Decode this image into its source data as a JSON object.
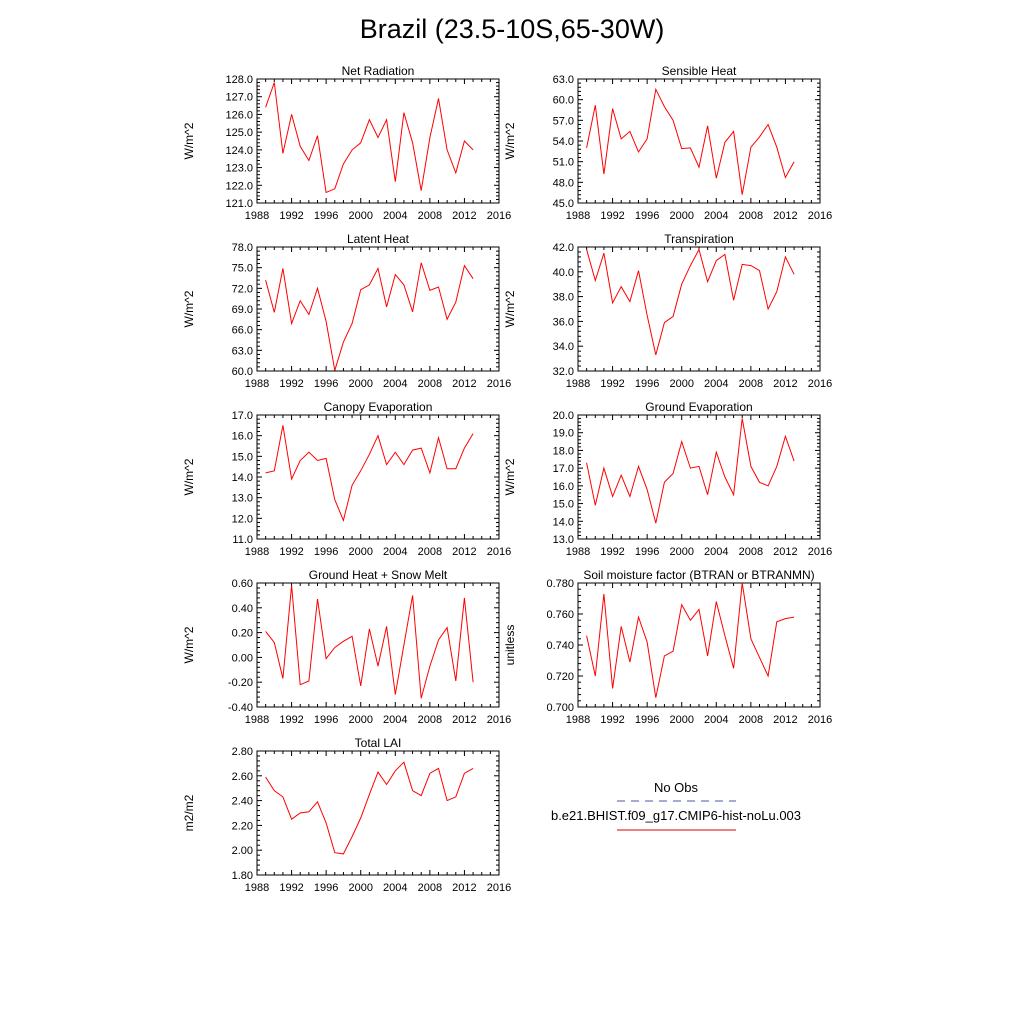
{
  "page": {
    "title": "Brazil (23.5-10S,65-30W)"
  },
  "legend": {
    "items": [
      {
        "label": "No Obs",
        "color": "#4a5aa8",
        "style": "dashed"
      },
      {
        "label": "b.e21.BHIST.f09_g17.CMIP6-hist-noLu.003",
        "color": "#e00000",
        "style": "solid"
      }
    ]
  },
  "colors": {
    "model_line": "#ff0000",
    "axis": "#000000"
  },
  "chart_data": [
    {
      "type": "line",
      "title": "Net Radiation",
      "ylabel": "W/m^2",
      "xlim": [
        1988,
        2016
      ],
      "ylim": [
        121.0,
        128.0
      ],
      "xticks": [
        "1988",
        "1992",
        "1996",
        "2000",
        "2004",
        "2008",
        "2012",
        "2016"
      ],
      "yticks": [
        "121.0",
        "122.0",
        "123.0",
        "124.0",
        "125.0",
        "126.0",
        "127.0",
        "128.0"
      ],
      "x": [
        1989,
        1990,
        1991,
        1992,
        1993,
        1994,
        1995,
        1996,
        1997,
        1998,
        1999,
        2000,
        2001,
        2002,
        2003,
        2004,
        2005,
        2006,
        2007,
        2008,
        2009,
        2010,
        2011,
        2012,
        2013
      ],
      "series": [
        {
          "values": [
            126.4,
            127.8,
            123.8,
            126.0,
            124.2,
            123.4,
            124.8,
            121.6,
            121.8,
            123.2,
            124.0,
            124.4,
            125.7,
            124.7,
            125.7,
            122.2,
            126.1,
            124.4,
            121.7,
            124.7,
            126.9,
            124.0,
            122.7,
            124.5,
            124.0
          ]
        }
      ]
    },
    {
      "type": "line",
      "title": "Sensible Heat",
      "ylabel": "W/m^2",
      "xlim": [
        1988,
        2016
      ],
      "ylim": [
        45.0,
        63.0
      ],
      "xticks": [
        "1988",
        "1992",
        "1996",
        "2000",
        "2004",
        "2008",
        "2012",
        "2016"
      ],
      "yticks": [
        "45.0",
        "48.0",
        "51.0",
        "54.0",
        "57.0",
        "60.0",
        "63.0"
      ],
      "x": [
        1989,
        1990,
        1991,
        1992,
        1993,
        1994,
        1995,
        1996,
        1997,
        1998,
        1999,
        2000,
        2001,
        2002,
        2003,
        2004,
        2005,
        2006,
        2007,
        2008,
        2009,
        2010,
        2011,
        2012,
        2013
      ],
      "series": [
        {
          "values": [
            53.0,
            59.2,
            49.2,
            58.7,
            54.3,
            55.4,
            52.4,
            54.3,
            61.5,
            59.0,
            57.0,
            52.9,
            53.0,
            50.2,
            56.2,
            48.6,
            53.8,
            55.4,
            46.2,
            53.1,
            54.6,
            56.4,
            53.1,
            48.7,
            51.0
          ]
        }
      ]
    },
    {
      "type": "line",
      "title": "Latent Heat",
      "ylabel": "W/m^2",
      "xlim": [
        1988,
        2016
      ],
      "ylim": [
        60.0,
        78.0
      ],
      "xticks": [
        "1988",
        "1992",
        "1996",
        "2000",
        "2004",
        "2008",
        "2012",
        "2016"
      ],
      "yticks": [
        "60.0",
        "63.0",
        "66.0",
        "69.0",
        "72.0",
        "75.0",
        "78.0"
      ],
      "x": [
        1989,
        1990,
        1991,
        1992,
        1993,
        1994,
        1995,
        1996,
        1997,
        1998,
        1999,
        2000,
        2001,
        2002,
        2003,
        2004,
        2005,
        2006,
        2007,
        2008,
        2009,
        2010,
        2011,
        2012,
        2013
      ],
      "series": [
        {
          "values": [
            73.2,
            68.5,
            74.9,
            66.9,
            70.2,
            68.2,
            72.0,
            67.2,
            60.1,
            64.2,
            66.9,
            71.8,
            72.5,
            74.9,
            69.3,
            74.0,
            72.5,
            68.6,
            75.7,
            71.7,
            72.2,
            67.5,
            70.0,
            75.3,
            73.4
          ]
        }
      ]
    },
    {
      "type": "line",
      "title": "Transpiration",
      "ylabel": "W/m^2",
      "xlim": [
        1988,
        2016
      ],
      "ylim": [
        32.0,
        42.0
      ],
      "xticks": [
        "1988",
        "1992",
        "1996",
        "2000",
        "2004",
        "2008",
        "2012",
        "2016"
      ],
      "yticks": [
        "32.0",
        "34.0",
        "36.0",
        "38.0",
        "40.0",
        "42.0"
      ],
      "x": [
        1989,
        1990,
        1991,
        1992,
        1993,
        1994,
        1995,
        1996,
        1997,
        1998,
        1999,
        2000,
        2001,
        2002,
        2003,
        2004,
        2005,
        2006,
        2007,
        2008,
        2009,
        2010,
        2011,
        2012,
        2013
      ],
      "series": [
        {
          "values": [
            41.8,
            39.3,
            41.5,
            37.5,
            38.8,
            37.6,
            40.1,
            36.5,
            33.3,
            35.9,
            36.4,
            39.0,
            40.5,
            41.8,
            39.2,
            40.9,
            41.4,
            37.7,
            40.6,
            40.5,
            40.1,
            37.0,
            38.4,
            41.2,
            39.8
          ]
        }
      ]
    },
    {
      "type": "line",
      "title": "Canopy Evaporation",
      "ylabel": "W/m^2",
      "xlim": [
        1988,
        2016
      ],
      "ylim": [
        11.0,
        17.0
      ],
      "xticks": [
        "1988",
        "1992",
        "1996",
        "2000",
        "2004",
        "2008",
        "2012",
        "2016"
      ],
      "yticks": [
        "11.0",
        "12.0",
        "13.0",
        "14.0",
        "15.0",
        "16.0",
        "17.0"
      ],
      "x": [
        1989,
        1990,
        1991,
        1992,
        1993,
        1994,
        1995,
        1996,
        1997,
        1998,
        1999,
        2000,
        2001,
        2002,
        2003,
        2004,
        2005,
        2006,
        2007,
        2008,
        2009,
        2010,
        2011,
        2012,
        2013
      ],
      "series": [
        {
          "values": [
            14.2,
            14.3,
            16.5,
            13.9,
            14.8,
            15.2,
            14.8,
            14.9,
            12.9,
            11.9,
            13.6,
            14.3,
            15.1,
            16.0,
            14.6,
            15.2,
            14.6,
            15.3,
            15.4,
            14.2,
            15.9,
            14.4,
            14.4,
            15.4,
            16.1
          ]
        }
      ]
    },
    {
      "type": "line",
      "title": "Ground Evaporation",
      "ylabel": "W/m^2",
      "xlim": [
        1988,
        2016
      ],
      "ylim": [
        13.0,
        20.0
      ],
      "xticks": [
        "1988",
        "1992",
        "1996",
        "2000",
        "2004",
        "2008",
        "2012",
        "2016"
      ],
      "yticks": [
        "13.0",
        "14.0",
        "15.0",
        "16.0",
        "17.0",
        "18.0",
        "19.0",
        "20.0"
      ],
      "x": [
        1989,
        1990,
        1991,
        1992,
        1993,
        1994,
        1995,
        1996,
        1997,
        1998,
        1999,
        2000,
        2001,
        2002,
        2003,
        2004,
        2005,
        2006,
        2007,
        2008,
        2009,
        2010,
        2011,
        2012,
        2013
      ],
      "series": [
        {
          "values": [
            17.3,
            14.9,
            17.0,
            15.4,
            16.6,
            15.4,
            17.1,
            15.8,
            13.9,
            16.2,
            16.7,
            18.5,
            17.0,
            17.1,
            15.5,
            17.9,
            16.5,
            15.5,
            19.8,
            17.1,
            16.2,
            16.0,
            17.1,
            18.8,
            17.4
          ]
        }
      ]
    },
    {
      "type": "line",
      "title": "Ground Heat + Snow Melt",
      "ylabel": "W/m^2",
      "xlim": [
        1988,
        2016
      ],
      "ylim": [
        -0.4,
        0.6
      ],
      "xticks": [
        "1988",
        "1992",
        "1996",
        "2000",
        "2004",
        "2008",
        "2012",
        "2016"
      ],
      "yticks": [
        "-0.40",
        "-0.20",
        "0.00",
        "0.20",
        "0.40",
        "0.60"
      ],
      "x": [
        1989,
        1990,
        1991,
        1992,
        1993,
        1994,
        1995,
        1996,
        1997,
        1998,
        1999,
        2000,
        2001,
        2002,
        2003,
        2004,
        2005,
        2006,
        2007,
        2008,
        2009,
        2010,
        2011,
        2012,
        2013
      ],
      "series": [
        {
          "values": [
            0.21,
            0.12,
            -0.17,
            0.58,
            -0.22,
            -0.19,
            0.47,
            -0.01,
            0.08,
            0.13,
            0.17,
            -0.23,
            0.23,
            -0.07,
            0.25,
            -0.3,
            0.1,
            0.5,
            -0.33,
            -0.07,
            0.14,
            0.24,
            -0.19,
            0.48,
            -0.2
          ]
        }
      ]
    },
    {
      "type": "line",
      "title": "Soil moisture factor (BTRAN or BTRANMN)",
      "ylabel": "unitless",
      "xlim": [
        1988,
        2016
      ],
      "ylim": [
        0.7,
        0.78
      ],
      "xticks": [
        "1988",
        "1992",
        "1996",
        "2000",
        "2004",
        "2008",
        "2012",
        "2016"
      ],
      "yticks": [
        "0.700",
        "0.720",
        "0.740",
        "0.760",
        "0.780"
      ],
      "x": [
        1989,
        1990,
        1991,
        1992,
        1993,
        1994,
        1995,
        1996,
        1997,
        1998,
        1999,
        2000,
        2001,
        2002,
        2003,
        2004,
        2005,
        2006,
        2007,
        2008,
        2009,
        2010,
        2011,
        2012,
        2013
      ],
      "series": [
        {
          "values": [
            0.746,
            0.72,
            0.773,
            0.712,
            0.752,
            0.729,
            0.758,
            0.742,
            0.706,
            0.733,
            0.736,
            0.766,
            0.756,
            0.763,
            0.733,
            0.768,
            0.746,
            0.725,
            0.78,
            0.744,
            0.732,
            0.72,
            0.755,
            0.757,
            0.758
          ]
        }
      ]
    },
    {
      "type": "line",
      "title": "Total LAI",
      "ylabel": "m2/m2",
      "xlim": [
        1988,
        2016
      ],
      "ylim": [
        1.8,
        2.8
      ],
      "xticks": [
        "1988",
        "1992",
        "1996",
        "2000",
        "2004",
        "2008",
        "2012",
        "2016"
      ],
      "yticks": [
        "1.80",
        "2.00",
        "2.20",
        "2.40",
        "2.60",
        "2.80"
      ],
      "x": [
        1989,
        1990,
        1991,
        1992,
        1993,
        1994,
        1995,
        1996,
        1997,
        1998,
        1999,
        2000,
        2001,
        2002,
        2003,
        2004,
        2005,
        2006,
        2007,
        2008,
        2009,
        2010,
        2011,
        2012,
        2013
      ],
      "series": [
        {
          "values": [
            2.59,
            2.48,
            2.43,
            2.25,
            2.3,
            2.31,
            2.39,
            2.22,
            1.98,
            1.97,
            2.11,
            2.26,
            2.45,
            2.63,
            2.53,
            2.64,
            2.71,
            2.48,
            2.44,
            2.62,
            2.66,
            2.4,
            2.43,
            2.62,
            2.66
          ]
        }
      ]
    }
  ]
}
